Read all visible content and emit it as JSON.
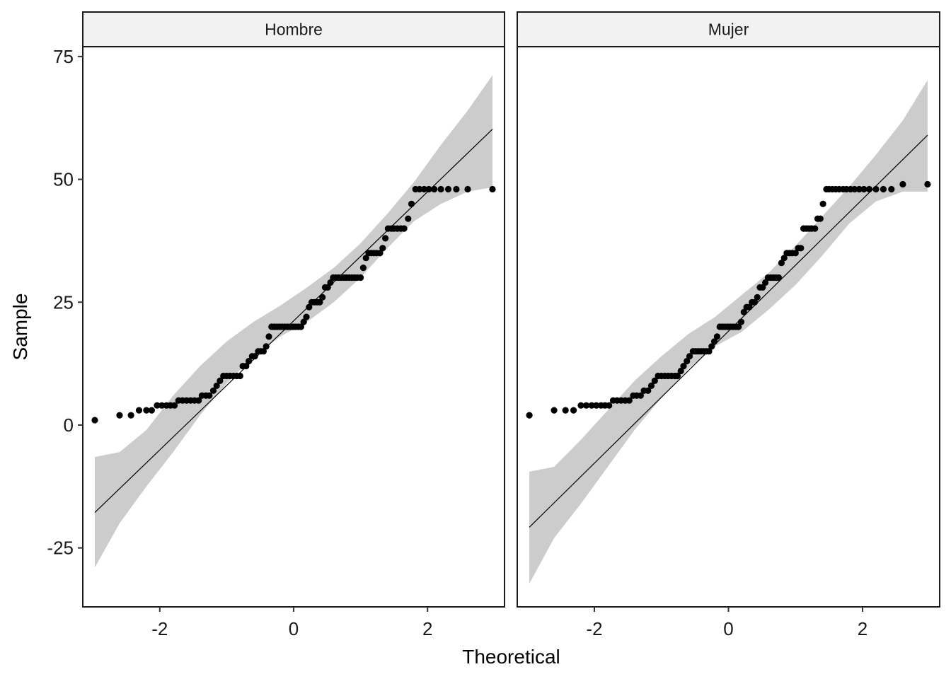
{
  "chart_data": {
    "type": "scatter",
    "subtype": "qq-plot",
    "xlabel": "Theoretical",
    "ylabel": "Sample",
    "xlim": [
      -3.15,
      3.15
    ],
    "ylim": [
      -37,
      77
    ],
    "x_ticks": [
      -2,
      0,
      2
    ],
    "x_tick_labels": [
      "-2",
      "0",
      "2"
    ],
    "y_ticks": [
      -25,
      0,
      25,
      50,
      75
    ],
    "y_tick_labels": [
      "-25",
      "0",
      "25",
      "50",
      "75"
    ],
    "grid": false,
    "legend": "none",
    "colors": {
      "points": "#000000",
      "band": "#cccccc",
      "line": "#000000",
      "strip": "#f2f2f2"
    },
    "panels": [
      {
        "label": "Hombre",
        "reference_line": {
          "x": [
            -2.97,
            2.97
          ],
          "y": [
            -17.8,
            60.2
          ]
        },
        "confidence_band": {
          "x": [
            -2.97,
            -2.6,
            -2.2,
            -1.8,
            -1.4,
            -1.0,
            -0.6,
            -0.2,
            0.2,
            0.6,
            1.0,
            1.4,
            1.8,
            2.2,
            2.6,
            2.97
          ],
          "upper": [
            -6.5,
            -5.5,
            -1.0,
            6.0,
            12.0,
            17.0,
            21.0,
            24.3,
            28.0,
            32.0,
            37.0,
            43.0,
            49.5,
            57.0,
            64.0,
            71.2
          ],
          "lower": [
            -29.0,
            -20.0,
            -12.5,
            -5.5,
            2.0,
            8.5,
            14.0,
            18.0,
            21.0,
            25.0,
            30.0,
            36.0,
            41.5,
            45.0,
            47.5,
            48.4
          ]
        },
        "points": [
          [
            -2.97,
            1
          ],
          [
            -2.6,
            2
          ],
          [
            -2.43,
            2
          ],
          [
            -2.31,
            3
          ],
          [
            -2.2,
            3
          ],
          [
            -2.12,
            3
          ],
          [
            -2.04,
            4
          ],
          [
            -1.97,
            4
          ],
          [
            -1.9,
            4
          ],
          [
            -1.84,
            4
          ],
          [
            -1.78,
            4
          ],
          [
            -1.72,
            5
          ],
          [
            -1.66,
            5
          ],
          [
            -1.6,
            5
          ],
          [
            -1.54,
            5
          ],
          [
            -1.48,
            5
          ],
          [
            -1.42,
            5
          ],
          [
            -1.37,
            6
          ],
          [
            -1.31,
            6
          ],
          [
            -1.26,
            6
          ],
          [
            -1.2,
            7
          ],
          [
            -1.15,
            8
          ],
          [
            -1.1,
            9
          ],
          [
            -1.05,
            10
          ],
          [
            -1.0,
            10
          ],
          [
            -0.95,
            10
          ],
          [
            -0.9,
            10
          ],
          [
            -0.85,
            10
          ],
          [
            -0.8,
            10
          ],
          [
            -0.76,
            12
          ],
          [
            -0.71,
            12
          ],
          [
            -0.67,
            13
          ],
          [
            -0.62,
            14
          ],
          [
            -0.58,
            14
          ],
          [
            -0.53,
            15
          ],
          [
            -0.49,
            15
          ],
          [
            -0.45,
            15
          ],
          [
            -0.41,
            16
          ],
          [
            -0.37,
            18
          ],
          [
            -0.33,
            20
          ],
          [
            -0.29,
            20
          ],
          [
            -0.25,
            20
          ],
          [
            -0.21,
            20
          ],
          [
            -0.17,
            20
          ],
          [
            -0.13,
            20
          ],
          [
            -0.09,
            20
          ],
          [
            -0.05,
            20
          ],
          [
            -0.01,
            20
          ],
          [
            0.03,
            20
          ],
          [
            0.07,
            20
          ],
          [
            0.11,
            20
          ],
          [
            0.15,
            21
          ],
          [
            0.19,
            22
          ],
          [
            0.23,
            24
          ],
          [
            0.27,
            25
          ],
          [
            0.31,
            25
          ],
          [
            0.35,
            25
          ],
          [
            0.39,
            25
          ],
          [
            0.43,
            26
          ],
          [
            0.47,
            28
          ],
          [
            0.51,
            28
          ],
          [
            0.55,
            29
          ],
          [
            0.59,
            30
          ],
          [
            0.63,
            30
          ],
          [
            0.67,
            30
          ],
          [
            0.71,
            30
          ],
          [
            0.75,
            30
          ],
          [
            0.79,
            30
          ],
          [
            0.83,
            30
          ],
          [
            0.87,
            30
          ],
          [
            0.91,
            30
          ],
          [
            0.95,
            30
          ],
          [
            1.0,
            30
          ],
          [
            1.04,
            32
          ],
          [
            1.08,
            34
          ],
          [
            1.12,
            35
          ],
          [
            1.16,
            35
          ],
          [
            1.2,
            35
          ],
          [
            1.24,
            35
          ],
          [
            1.29,
            35
          ],
          [
            1.33,
            36
          ],
          [
            1.37,
            38
          ],
          [
            1.41,
            40
          ],
          [
            1.46,
            40
          ],
          [
            1.5,
            40
          ],
          [
            1.55,
            40
          ],
          [
            1.6,
            40
          ],
          [
            1.65,
            40
          ],
          [
            1.71,
            42
          ],
          [
            1.76,
            45
          ],
          [
            1.82,
            48
          ],
          [
            1.88,
            48
          ],
          [
            1.95,
            48
          ],
          [
            2.02,
            48
          ],
          [
            2.1,
            48
          ],
          [
            2.2,
            48
          ],
          [
            2.31,
            48
          ],
          [
            2.43,
            48
          ],
          [
            2.6,
            48
          ],
          [
            2.97,
            48
          ]
        ]
      },
      {
        "label": "Mujer",
        "reference_line": {
          "x": [
            -2.97,
            2.97
          ],
          "y": [
            -20.8,
            59.0
          ]
        },
        "confidence_band": {
          "x": [
            -2.97,
            -2.6,
            -2.2,
            -1.8,
            -1.4,
            -1.0,
            -0.6,
            -0.2,
            0.2,
            0.6,
            1.0,
            1.4,
            1.8,
            2.2,
            2.6,
            2.97
          ],
          "upper": [
            -9.5,
            -8.5,
            -3.0,
            3.0,
            9.0,
            14.0,
            18.5,
            22.0,
            26.5,
            31.0,
            36.5,
            42.5,
            48.5,
            55.0,
            62.0,
            70.2
          ],
          "lower": [
            -32.3,
            -23.0,
            -16.0,
            -8.5,
            -1.0,
            5.5,
            11.5,
            16.0,
            19.0,
            23.5,
            28.5,
            34.5,
            41.0,
            45.5,
            47.5,
            47.5
          ]
        },
        "points": [
          [
            -2.97,
            2
          ],
          [
            -2.6,
            3
          ],
          [
            -2.43,
            3
          ],
          [
            -2.31,
            3
          ],
          [
            -2.2,
            4
          ],
          [
            -2.12,
            4
          ],
          [
            -2.04,
            4
          ],
          [
            -1.97,
            4
          ],
          [
            -1.9,
            4
          ],
          [
            -1.84,
            4
          ],
          [
            -1.78,
            4
          ],
          [
            -1.72,
            5
          ],
          [
            -1.66,
            5
          ],
          [
            -1.6,
            5
          ],
          [
            -1.54,
            5
          ],
          [
            -1.48,
            5
          ],
          [
            -1.42,
            6
          ],
          [
            -1.37,
            6
          ],
          [
            -1.31,
            6
          ],
          [
            -1.26,
            7
          ],
          [
            -1.2,
            7
          ],
          [
            -1.15,
            8
          ],
          [
            -1.1,
            9
          ],
          [
            -1.05,
            10
          ],
          [
            -1.0,
            10
          ],
          [
            -0.95,
            10
          ],
          [
            -0.9,
            10
          ],
          [
            -0.85,
            10
          ],
          [
            -0.8,
            10
          ],
          [
            -0.76,
            10
          ],
          [
            -0.71,
            11
          ],
          [
            -0.67,
            12
          ],
          [
            -0.62,
            13
          ],
          [
            -0.58,
            14
          ],
          [
            -0.53,
            15
          ],
          [
            -0.49,
            15
          ],
          [
            -0.45,
            15
          ],
          [
            -0.41,
            15
          ],
          [
            -0.37,
            15
          ],
          [
            -0.33,
            15
          ],
          [
            -0.29,
            15
          ],
          [
            -0.25,
            16
          ],
          [
            -0.21,
            17
          ],
          [
            -0.17,
            18
          ],
          [
            -0.13,
            20
          ],
          [
            -0.09,
            20
          ],
          [
            -0.05,
            20
          ],
          [
            -0.01,
            20
          ],
          [
            0.03,
            20
          ],
          [
            0.07,
            20
          ],
          [
            0.11,
            20
          ],
          [
            0.15,
            20
          ],
          [
            0.19,
            21
          ],
          [
            0.23,
            23
          ],
          [
            0.27,
            24
          ],
          [
            0.31,
            24
          ],
          [
            0.35,
            25
          ],
          [
            0.39,
            25
          ],
          [
            0.43,
            26
          ],
          [
            0.47,
            28
          ],
          [
            0.51,
            28
          ],
          [
            0.55,
            29
          ],
          [
            0.59,
            30
          ],
          [
            0.63,
            30
          ],
          [
            0.67,
            30
          ],
          [
            0.71,
            30
          ],
          [
            0.75,
            30
          ],
          [
            0.79,
            33
          ],
          [
            0.83,
            34
          ],
          [
            0.87,
            35
          ],
          [
            0.91,
            35
          ],
          [
            0.95,
            35
          ],
          [
            1.0,
            35
          ],
          [
            1.04,
            36
          ],
          [
            1.08,
            36
          ],
          [
            1.12,
            40
          ],
          [
            1.16,
            40
          ],
          [
            1.2,
            40
          ],
          [
            1.24,
            40
          ],
          [
            1.29,
            40
          ],
          [
            1.33,
            42
          ],
          [
            1.37,
            42
          ],
          [
            1.41,
            45
          ],
          [
            1.46,
            48
          ],
          [
            1.5,
            48
          ],
          [
            1.55,
            48
          ],
          [
            1.6,
            48
          ],
          [
            1.65,
            48
          ],
          [
            1.71,
            48
          ],
          [
            1.76,
            48
          ],
          [
            1.82,
            48
          ],
          [
            1.88,
            48
          ],
          [
            1.95,
            48
          ],
          [
            2.02,
            48
          ],
          [
            2.1,
            48
          ],
          [
            2.2,
            48
          ],
          [
            2.31,
            48
          ],
          [
            2.43,
            48
          ],
          [
            2.6,
            49
          ],
          [
            2.97,
            49
          ]
        ]
      }
    ]
  }
}
